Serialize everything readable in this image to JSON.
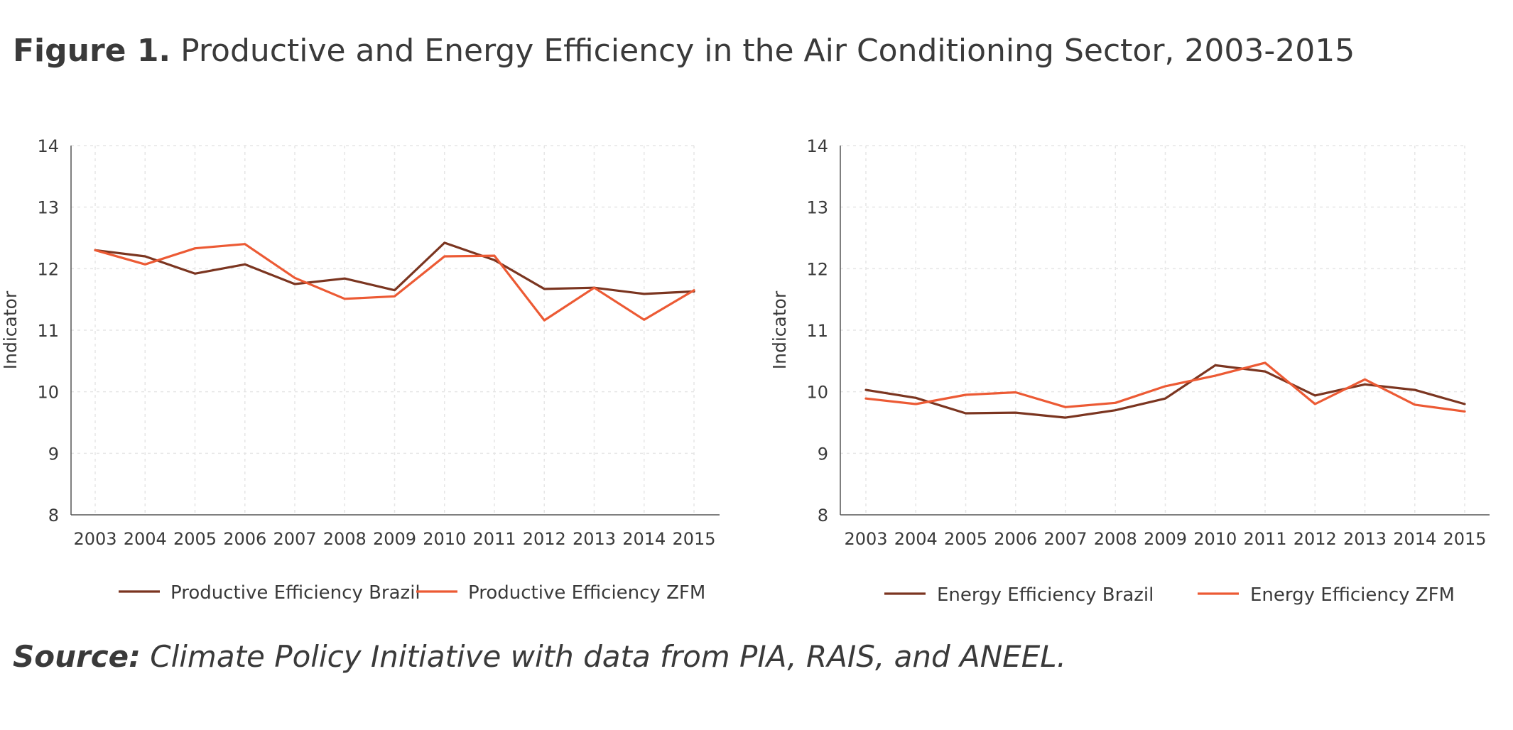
{
  "figure": {
    "title_label": "Figure 1.",
    "title_text": "Productive and Energy Efficiency in the Air Conditioning Sector, 2003-2015"
  },
  "source": {
    "label": "Source:",
    "text": "Climate Policy Initiative with data from PIA, RAIS, and ANEEL."
  },
  "colors": {
    "brazil": "#7b3520",
    "zfm": "#ec5a34",
    "axis": "#555555",
    "grid": "#e6e6e6"
  },
  "chart_data": [
    {
      "type": "line",
      "title": "",
      "xlabel": "",
      "ylabel": "Indicator",
      "ylim": [
        8,
        14
      ],
      "yticks": [
        8,
        9,
        10,
        11,
        12,
        13,
        14
      ],
      "grid": true,
      "legend_position": "bottom",
      "categories": [
        "2003",
        "2004",
        "2005",
        "2006",
        "2007",
        "2008",
        "2009",
        "2010",
        "2011",
        "2012",
        "2013",
        "2014",
        "2015"
      ],
      "series": [
        {
          "name": "Productive Efficiency Brazil",
          "color": "#7b3520",
          "values": [
            12.3,
            12.2,
            11.92,
            12.07,
            11.75,
            11.84,
            11.65,
            12.42,
            12.14,
            11.67,
            11.69,
            11.59,
            11.63
          ]
        },
        {
          "name": "Productive Efficiency ZFM",
          "color": "#ec5a34",
          "values": [
            12.3,
            12.07,
            12.33,
            12.4,
            11.85,
            11.51,
            11.55,
            12.2,
            12.21,
            11.16,
            11.69,
            11.17,
            11.65
          ]
        }
      ]
    },
    {
      "type": "line",
      "title": "",
      "xlabel": "",
      "ylabel": "Indicator",
      "ylim": [
        8,
        14
      ],
      "yticks": [
        8,
        9,
        10,
        11,
        12,
        13,
        14
      ],
      "grid": true,
      "legend_position": "bottom",
      "categories": [
        "2003",
        "2004",
        "2005",
        "2006",
        "2007",
        "2008",
        "2009",
        "2010",
        "2011",
        "2012",
        "2013",
        "2014",
        "2015"
      ],
      "series": [
        {
          "name": "Energy Efficiency Brazil",
          "color": "#7b3520",
          "values": [
            10.03,
            9.9,
            9.65,
            9.66,
            9.58,
            9.7,
            9.89,
            10.43,
            10.33,
            9.94,
            10.12,
            10.03,
            9.8
          ]
        },
        {
          "name": "Energy Efficiency ZFM",
          "color": "#ec5a34",
          "values": [
            9.89,
            9.8,
            9.95,
            9.99,
            9.75,
            9.82,
            10.09,
            10.26,
            10.47,
            9.8,
            10.2,
            9.79,
            9.68
          ]
        }
      ]
    }
  ]
}
